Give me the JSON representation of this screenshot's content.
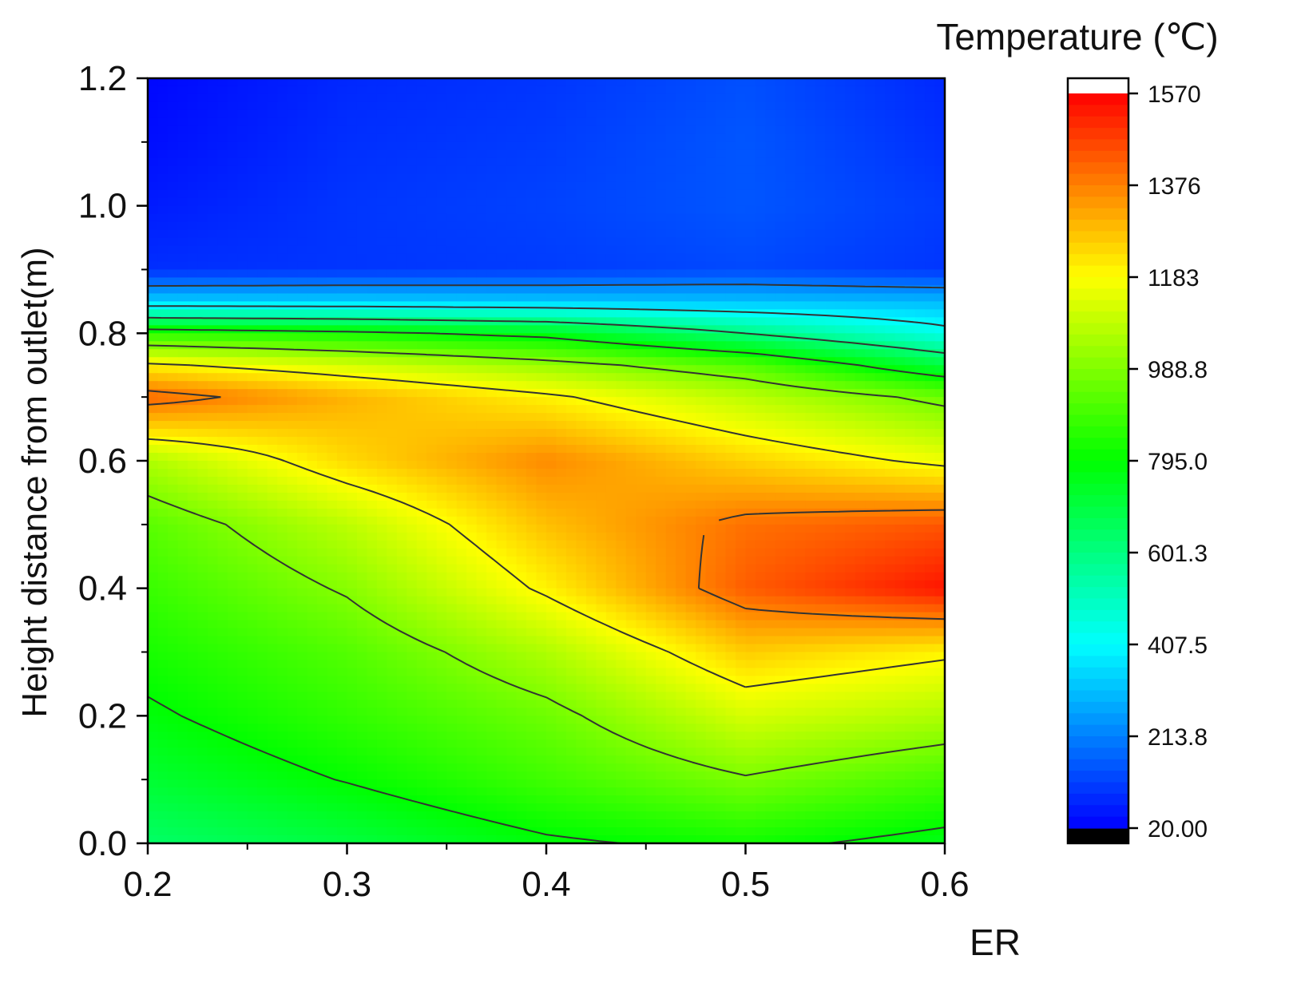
{
  "chart_data": {
    "type": "heatmap",
    "subtype": "filled-contour",
    "title": "",
    "xlabel": "ER",
    "ylabel": "Height distance from outlet(m)",
    "xlim": [
      0.2,
      0.6
    ],
    "ylim": [
      0.0,
      1.2
    ],
    "xticks": [
      "0.2",
      "0.3",
      "0.4",
      "0.5",
      "0.6"
    ],
    "yticks": [
      "0.0",
      "0.2",
      "0.4",
      "0.6",
      "0.8",
      "1.0",
      "1.2"
    ],
    "x": [
      0.2,
      0.3,
      0.4,
      0.5,
      0.6
    ],
    "y": [
      0.0,
      0.1,
      0.2,
      0.3,
      0.4,
      0.5,
      0.6,
      0.7,
      0.75,
      0.8,
      0.85,
      0.9,
      1.0,
      1.1,
      1.2
    ],
    "z": [
      [
        640,
        700,
        780,
        820,
        760
      ],
      [
        720,
        800,
        890,
        980,
        900
      ],
      [
        780,
        870,
        960,
        1120,
        1060
      ],
      [
        830,
        920,
        1060,
        1260,
        1200
      ],
      [
        880,
        1000,
        1200,
        1430,
        1540
      ],
      [
        930,
        1080,
        1280,
        1400,
        1440
      ],
      [
        1060,
        1240,
        1360,
        1250,
        1160
      ],
      [
        1420,
        1300,
        1200,
        1080,
        960
      ],
      [
        1200,
        1120,
        1030,
        920,
        700
      ],
      [
        860,
        820,
        760,
        600,
        440
      ],
      [
        330,
        330,
        320,
        310,
        300
      ],
      [
        90,
        100,
        110,
        130,
        100
      ],
      [
        60,
        100,
        120,
        150,
        110
      ],
      [
        40,
        90,
        110,
        150,
        90
      ],
      [
        30,
        80,
        100,
        140,
        80
      ]
    ],
    "colorbar": {
      "title": "Temperature (℃)",
      "min": 20.0,
      "max": 1570,
      "ticks": [
        "20.00",
        "213.8",
        "407.5",
        "601.3",
        "795.0",
        "988.8",
        "1183",
        "1376",
        "1570"
      ],
      "colors": [
        "#0000ff",
        "#0080ff",
        "#00ffff",
        "#00ff80",
        "#00ff00",
        "#80ff00",
        "#ffff00",
        "#ff8000",
        "#ff0000"
      ],
      "under_color": "#000000",
      "over_color": "#ffffff"
    },
    "contour_line_color": "#333333",
    "grid": false
  }
}
